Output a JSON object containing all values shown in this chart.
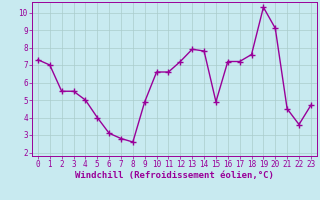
{
  "x": [
    0,
    1,
    2,
    3,
    4,
    5,
    6,
    7,
    8,
    9,
    10,
    11,
    12,
    13,
    14,
    15,
    16,
    17,
    18,
    19,
    20,
    21,
    22,
    23
  ],
  "y": [
    7.3,
    7.0,
    5.5,
    5.5,
    5.0,
    4.0,
    3.1,
    2.8,
    2.6,
    4.9,
    6.6,
    6.6,
    7.2,
    7.9,
    7.8,
    4.9,
    7.2,
    7.2,
    7.6,
    10.3,
    9.1,
    4.5,
    3.6,
    4.7
  ],
  "line_color": "#990099",
  "marker": "+",
  "marker_size": 4,
  "background_color": "#c8eaf0",
  "grid_color": "#aacccc",
  "xlabel": "Windchill (Refroidissement éolien,°C)",
  "xlim": [
    -0.5,
    23.5
  ],
  "ylim": [
    1.8,
    10.6
  ],
  "yticks": [
    2,
    3,
    4,
    5,
    6,
    7,
    8,
    9,
    10
  ],
  "xticks": [
    0,
    1,
    2,
    3,
    4,
    5,
    6,
    7,
    8,
    9,
    10,
    11,
    12,
    13,
    14,
    15,
    16,
    17,
    18,
    19,
    20,
    21,
    22,
    23
  ],
  "tick_fontsize": 5.5,
  "xlabel_fontsize": 6.5,
  "line_width": 1.0,
  "marker_edge_width": 1.0
}
